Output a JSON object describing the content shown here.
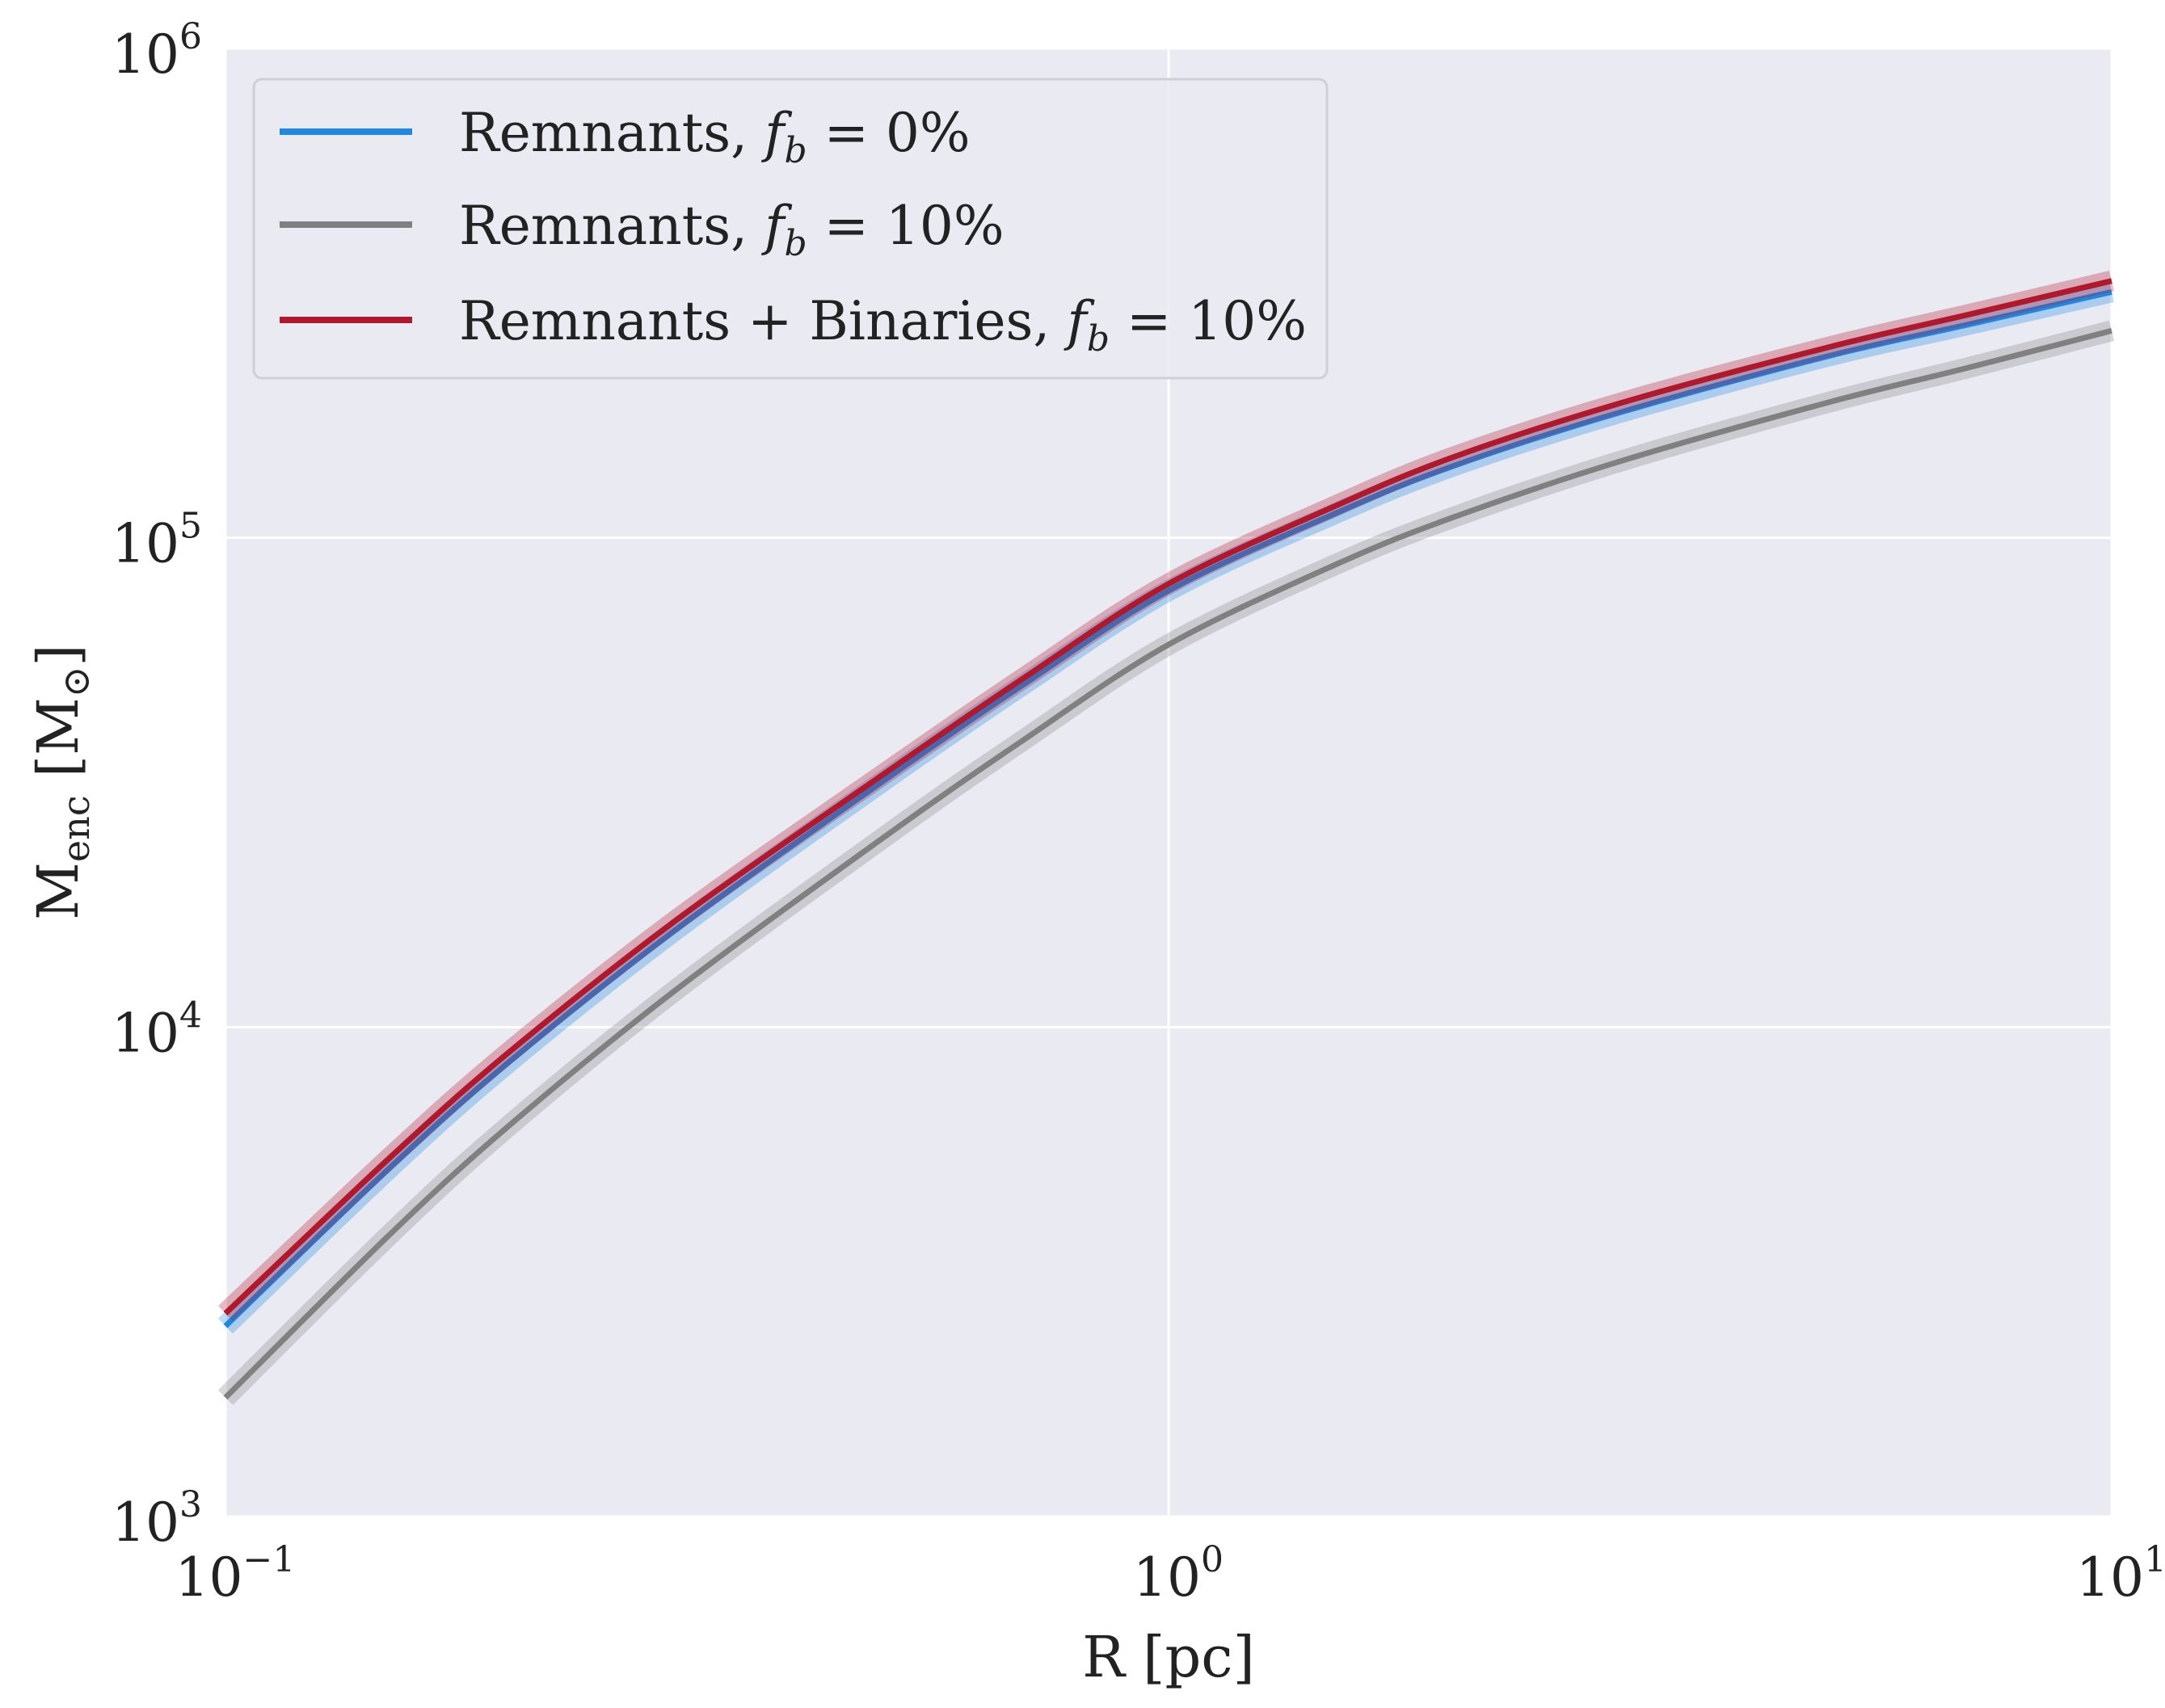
{
  "chart_data": {
    "type": "line",
    "title": "",
    "xlabel": "R [pc]",
    "ylabel": "M_enc [M_⊙]",
    "x_scale": "log",
    "y_scale": "log",
    "xlim": [
      0.1,
      10
    ],
    "ylim": [
      1000,
      1000000
    ],
    "grid": true,
    "legend_position": "top-left",
    "x_ticks": [
      {
        "value": 0.1,
        "base": "10",
        "exp": "−1"
      },
      {
        "value": 1,
        "base": "10",
        "exp": "0"
      },
      {
        "value": 10,
        "base": "10",
        "exp": "1"
      }
    ],
    "y_ticks": [
      {
        "value": 1000,
        "base": "10",
        "exp": "3"
      },
      {
        "value": 10000,
        "base": "10",
        "exp": "4"
      },
      {
        "value": 100000,
        "base": "10",
        "exp": "5"
      },
      {
        "value": 1000000,
        "base": "10",
        "exp": "6"
      }
    ],
    "x": [
      0.1,
      0.15,
      0.2,
      0.3,
      0.5,
      0.7,
      1.0,
      1.5,
      2,
      3,
      5,
      7,
      10
    ],
    "series": [
      {
        "name": "Remnants, f_b = 0%",
        "label_text": "Remnants,",
        "label_math": "f",
        "label_sub": "b",
        "label_tail": " = 0%",
        "color": "#1e88e5",
        "values": [
          2450,
          5200,
          8500,
          15800,
          32000,
          50000,
          78000,
          112000,
          140000,
          180000,
          235000,
          272000,
          318000
        ]
      },
      {
        "name": "Remnants, f_b = 10%",
        "label_text": "Remnants,",
        "label_math": "f",
        "label_sub": "b",
        "label_tail": " = 10%",
        "color": "#808080",
        "values": [
          1750,
          3800,
          6300,
          11900,
          24500,
          38500,
          60500,
          88000,
          110000,
          143000,
          189000,
          222000,
          265000
        ]
      },
      {
        "name": "Remnants + Binaries, f_b = 10%",
        "label_text": "Remnants + Binaries,",
        "label_math": "f",
        "label_sub": "b",
        "label_tail": " = 10%",
        "color": "#b2182b",
        "values": [
          2600,
          5450,
          8900,
          16500,
          33000,
          51500,
          80500,
          116000,
          146000,
          188000,
          245000,
          285000,
          335000
        ]
      }
    ]
  }
}
